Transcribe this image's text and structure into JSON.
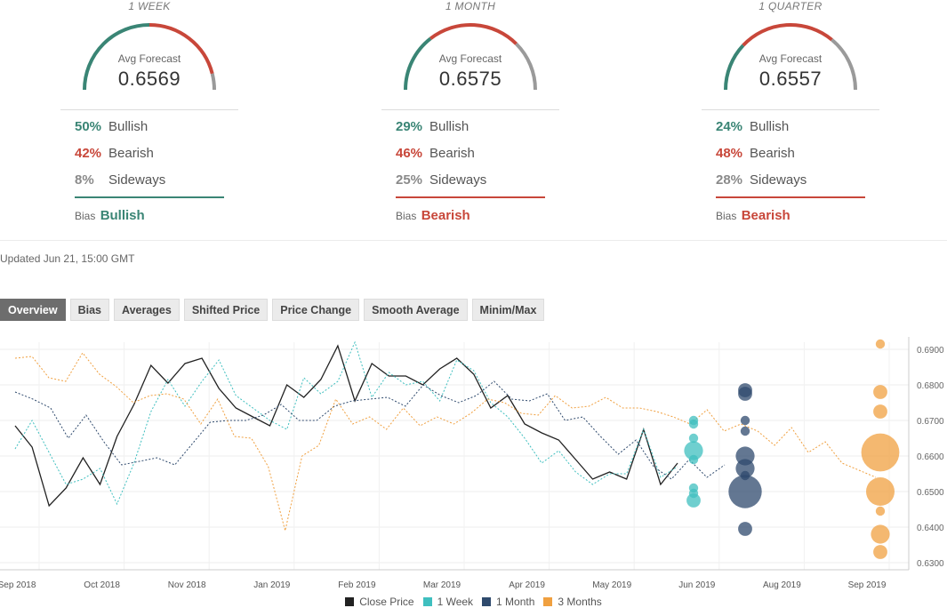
{
  "gauges": [
    {
      "period": "1 WEEK",
      "avg_label": "Avg Forecast",
      "avg_value": "0.6569",
      "bullish_pct": "50%",
      "bearish_pct": "42%",
      "sideways_pct": "8%",
      "bullish": 50,
      "bearish": 42,
      "sideways": 8,
      "bias_label": "Bias",
      "bias_value": "Bullish",
      "bias_color": "#3a8575"
    },
    {
      "period": "1 MONTH",
      "avg_label": "Avg Forecast",
      "avg_value": "0.6575",
      "bullish_pct": "29%",
      "bearish_pct": "46%",
      "sideways_pct": "25%",
      "bullish": 29,
      "bearish": 46,
      "sideways": 25,
      "bias_label": "Bias",
      "bias_value": "Bearish",
      "bias_color": "#c8473a"
    },
    {
      "period": "1 QUARTER",
      "avg_label": "Avg Forecast",
      "avg_value": "0.6557",
      "bullish_pct": "24%",
      "bearish_pct": "48%",
      "sideways_pct": "28%",
      "bullish": 24,
      "bearish": 48,
      "sideways": 28,
      "bias_label": "Bias",
      "bias_value": "Bearish",
      "bias_color": "#c8473a"
    }
  ],
  "labels": {
    "bullish": "Bullish",
    "bearish": "Bearish",
    "sideways": "Sideways"
  },
  "colors": {
    "bullish": "#3a8575",
    "bearish": "#c8473a",
    "sideways": "#9a9a9a"
  },
  "updated": "Updated Jun 21, 15:00 GMT",
  "tabs": [
    "Overview",
    "Bias",
    "Averages",
    "Shifted Price",
    "Price Change",
    "Smooth Average",
    "Minim/Max"
  ],
  "active_tab": "Overview",
  "chart_data": {
    "type": "line",
    "x_labels": [
      "Sep 2018",
      "Oct 2018",
      "Nov 2018",
      "Jan 2019",
      "Feb 2019",
      "Mar 2019",
      "Apr 2019",
      "May 2019",
      "Jun 2019",
      "Aug 2019",
      "Sep 2019"
    ],
    "y_ticks": [
      "0.6900",
      "0.6800",
      "0.6700",
      "0.6600",
      "0.6500",
      "0.6400",
      "0.6300"
    ],
    "ylim": [
      0.628,
      0.692
    ],
    "series": [
      {
        "name": "Close Price",
        "color": "#222222",
        "style": "solid",
        "values": [
          0.6685,
          0.6625,
          0.646,
          0.651,
          0.6595,
          0.652,
          0.6655,
          0.6745,
          0.6855,
          0.6805,
          0.686,
          0.6875,
          0.679,
          0.6735,
          0.671,
          0.6685,
          0.68,
          0.6765,
          0.6815,
          0.691,
          0.6755,
          0.686,
          0.6825,
          0.6825,
          0.68,
          0.6845,
          0.6875,
          0.683,
          0.6735,
          0.677,
          0.669,
          0.6665,
          0.6645,
          0.659,
          0.6535,
          0.6555,
          0.6535,
          0.6675,
          0.652,
          0.658
        ]
      },
      {
        "name": "1 Week",
        "color": "#3fbfbf",
        "style": "dashed",
        "values": [
          0.662,
          0.67,
          0.661,
          0.652,
          0.6535,
          0.6565,
          0.6465,
          0.658,
          0.6725,
          0.6815,
          0.674,
          0.681,
          0.687,
          0.677,
          0.6735,
          0.67,
          0.6675,
          0.682,
          0.6775,
          0.681,
          0.692,
          0.6765,
          0.6835,
          0.68,
          0.681,
          0.6755,
          0.687,
          0.684,
          0.675,
          0.671,
          0.665,
          0.658,
          0.6615,
          0.6555,
          0.652,
          0.655,
          0.655,
          0.6675,
          0.654,
          0.657
        ]
      },
      {
        "name": "1 Month",
        "color": "#2f4a6d",
        "style": "dashed",
        "values": [
          0.678,
          0.676,
          0.6735,
          0.665,
          0.6715,
          0.664,
          0.6575,
          0.6585,
          0.6595,
          0.6575,
          0.6635,
          0.6695,
          0.67,
          0.67,
          0.6715,
          0.6745,
          0.67,
          0.67,
          0.674,
          0.6755,
          0.676,
          0.6765,
          0.674,
          0.68,
          0.677,
          0.675,
          0.677,
          0.681,
          0.676,
          0.6755,
          0.6775,
          0.67,
          0.671,
          0.6655,
          0.6605,
          0.6645,
          0.657,
          0.6535,
          0.659,
          0.654,
          0.6575
        ]
      },
      {
        "name": "3 Months",
        "color": "#f0a040",
        "style": "dashed",
        "values": [
          0.6875,
          0.688,
          0.682,
          0.681,
          0.689,
          0.683,
          0.6795,
          0.675,
          0.677,
          0.6775,
          0.676,
          0.669,
          0.676,
          0.6655,
          0.665,
          0.657,
          0.639,
          0.66,
          0.663,
          0.676,
          0.669,
          0.671,
          0.6675,
          0.6735,
          0.6685,
          0.671,
          0.669,
          0.672,
          0.676,
          0.675,
          0.672,
          0.6715,
          0.677,
          0.6735,
          0.674,
          0.6765,
          0.6735,
          0.6735,
          0.6725,
          0.671,
          0.669,
          0.673,
          0.667,
          0.669,
          0.667,
          0.663,
          0.668,
          0.661,
          0.664,
          0.658,
          0.656,
          0.654
        ]
      }
    ],
    "forecast_bubbles": [
      {
        "series": "1 Week",
        "color": "#3fbfbf",
        "values": [
          0.67,
          0.669,
          0.665,
          0.6615,
          0.659,
          0.651,
          0.6495,
          0.6475
        ],
        "sizes": [
          1,
          1,
          1,
          3,
          1,
          1,
          1,
          2
        ]
      },
      {
        "series": "1 Month",
        "color": "#2f4a6d",
        "values": [
          0.6785,
          0.6775,
          0.67,
          0.667,
          0.66,
          0.6565,
          0.6545,
          0.65,
          0.6395
        ],
        "sizes": [
          2,
          2,
          1,
          1,
          3,
          3,
          1,
          6,
          2
        ]
      },
      {
        "series": "3 Months",
        "color": "#f0a040",
        "values": [
          0.6915,
          0.678,
          0.6725,
          0.661,
          0.65,
          0.6445,
          0.638,
          0.633
        ],
        "sizes": [
          1,
          2,
          2,
          7,
          5,
          1,
          3,
          2
        ]
      }
    ],
    "legend_position": "bottom",
    "grid": true
  }
}
